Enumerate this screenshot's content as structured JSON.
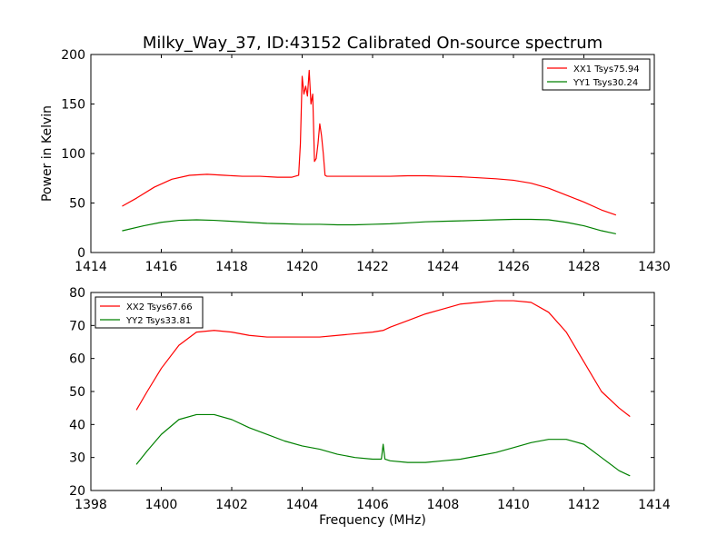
{
  "chart_data": [
    {
      "type": "line",
      "title": "Milky_Way_37, ID:43152 Calibrated On-source spectrum",
      "xlabel": "",
      "ylabel": "Power in Kelvin",
      "xlim": [
        1414,
        1430
      ],
      "ylim": [
        0,
        200
      ],
      "xticks": [
        1414,
        1416,
        1418,
        1420,
        1422,
        1424,
        1426,
        1428,
        1430
      ],
      "yticks": [
        0,
        50,
        100,
        150,
        200
      ],
      "grid": false,
      "legend_position": "upper-right",
      "series": [
        {
          "name": "XX1 Tsys75.94",
          "color": "#ff0000",
          "x": [
            1414.9,
            1415.3,
            1415.8,
            1416.3,
            1416.8,
            1417.3,
            1417.8,
            1418.3,
            1418.8,
            1419.3,
            1419.7,
            1419.9,
            1419.95,
            1420.0,
            1420.05,
            1420.1,
            1420.15,
            1420.2,
            1420.25,
            1420.3,
            1420.35,
            1420.4,
            1420.45,
            1420.5,
            1420.55,
            1420.6,
            1420.65,
            1420.7,
            1420.75,
            1420.8,
            1421.0,
            1421.5,
            1422.0,
            1422.5,
            1423.0,
            1423.5,
            1424.0,
            1424.5,
            1425.0,
            1425.5,
            1426.0,
            1426.5,
            1427.0,
            1427.5,
            1428.0,
            1428.5,
            1428.9
          ],
          "y": [
            47,
            55,
            66,
            74,
            78,
            79,
            78,
            77,
            77,
            76,
            76,
            78,
            110,
            178,
            160,
            168,
            158,
            184,
            150,
            160,
            92,
            95,
            110,
            130,
            118,
            100,
            78,
            77,
            77,
            77,
            77,
            77,
            77,
            77,
            77.5,
            77.5,
            77,
            76.5,
            75.5,
            74.5,
            73,
            70,
            65,
            58,
            51,
            43,
            38
          ]
        },
        {
          "name": "YY1 Tsys30.24",
          "color": "#008000",
          "x": [
            1414.9,
            1415.5,
            1416.0,
            1416.5,
            1417.0,
            1417.5,
            1418.0,
            1418.5,
            1419.0,
            1419.5,
            1420.0,
            1420.5,
            1421.0,
            1421.5,
            1422.0,
            1422.5,
            1423.0,
            1423.5,
            1424.0,
            1424.5,
            1425.0,
            1425.5,
            1426.0,
            1426.5,
            1427.0,
            1427.5,
            1428.0,
            1428.5,
            1428.9
          ],
          "y": [
            22,
            27,
            30.5,
            32.5,
            33,
            32.5,
            31.5,
            30.5,
            29.5,
            29,
            28.5,
            28.5,
            28,
            28,
            28.5,
            29,
            30,
            31,
            31.5,
            32,
            32.5,
            33,
            33.5,
            33.5,
            33,
            30.5,
            27,
            22,
            19
          ]
        }
      ]
    },
    {
      "type": "line",
      "title": "",
      "xlabel": "Frequency (MHz)",
      "ylabel": "",
      "xlim": [
        1398,
        1414
      ],
      "ylim": [
        20,
        80
      ],
      "xticks": [
        1398,
        1400,
        1402,
        1404,
        1406,
        1408,
        1410,
        1412,
        1414
      ],
      "yticks": [
        20,
        30,
        40,
        50,
        60,
        70,
        80
      ],
      "grid": false,
      "legend_position": "upper-left",
      "series": [
        {
          "name": "XX2 Tsys67.66",
          "color": "#ff0000",
          "x": [
            1399.3,
            1399.6,
            1400.0,
            1400.5,
            1401.0,
            1401.5,
            1402.0,
            1402.5,
            1403.0,
            1403.5,
            1404.0,
            1404.5,
            1405.0,
            1405.5,
            1406.0,
            1406.3,
            1406.5,
            1407.0,
            1407.5,
            1408.0,
            1408.5,
            1409.0,
            1409.5,
            1410.0,
            1410.5,
            1411.0,
            1411.5,
            1412.0,
            1412.5,
            1413.0,
            1413.3
          ],
          "y": [
            44.5,
            50,
            57,
            64,
            68,
            68.5,
            68,
            67,
            66.5,
            66.5,
            66.5,
            66.5,
            67,
            67.5,
            68,
            68.5,
            69.5,
            71.5,
            73.5,
            75,
            76.5,
            77,
            77.5,
            77.5,
            77,
            74,
            68,
            59,
            50,
            45,
            42.5
          ]
        },
        {
          "name": "YY2 Tsys33.81",
          "color": "#008000",
          "x": [
            1399.3,
            1399.6,
            1400.0,
            1400.5,
            1401.0,
            1401.5,
            1402.0,
            1402.5,
            1403.0,
            1403.5,
            1404.0,
            1404.5,
            1405.0,
            1405.5,
            1406.0,
            1406.25,
            1406.3,
            1406.35,
            1406.5,
            1407.0,
            1407.5,
            1408.0,
            1408.5,
            1409.0,
            1409.5,
            1410.0,
            1410.5,
            1411.0,
            1411.5,
            1412.0,
            1412.5,
            1413.0,
            1413.3
          ],
          "y": [
            28,
            32,
            37,
            41.5,
            43,
            43,
            41.5,
            39,
            37,
            35,
            33.5,
            32.5,
            31,
            30,
            29.5,
            29.5,
            34,
            29.5,
            29,
            28.5,
            28.5,
            29,
            29.5,
            30.5,
            31.5,
            33,
            34.5,
            35.5,
            35.5,
            34,
            30,
            26,
            24.5
          ]
        }
      ]
    }
  ]
}
